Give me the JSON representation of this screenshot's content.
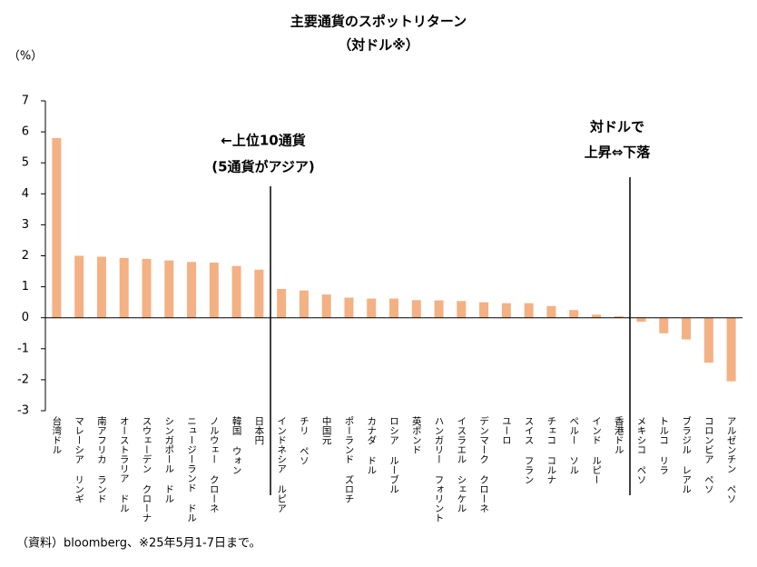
{
  "chart_data": {
    "type": "bar",
    "title": "主要通貨のスポットリターン",
    "subtitle": "（対ドル※）",
    "y_unit": "（%）",
    "annotations": [
      "←上位10通貨",
      "(5通貨がアジア)",
      "対ドルで",
      "上昇⇔下落"
    ],
    "footnote": "（資料）bloomberg、※25年5月1-7日まで。",
    "categories": [
      "台湾ドル",
      "マレーシア リンギ",
      "南アフリカ ランド",
      "オーストラリア ドル",
      "スウェーデン クローナ",
      "シンガポール ドル",
      "ニュージーランド ドル",
      "ノルウェー クローネ",
      "韓国 ウォン",
      "日本円",
      "インドネシア ルピア",
      "チリ ペソ",
      "中国元",
      "ポーランド ズロチ",
      "カナダ ドル",
      "ロシア ルーブル",
      "英ポンド",
      "ハンガリー フォリント",
      "イスラエル シェケル",
      "デンマーク クローネ",
      "ユーロ",
      "スイス フラン",
      "チェコ コルナ",
      "ペルー ソル",
      "インド ルピー",
      "香港ドル",
      "メキシコ ペソ",
      "トルコ リラ",
      "ブラジル レアル",
      "コロンビア ペソ",
      "アルゼンチン ペソ"
    ],
    "values": [
      5.8,
      2.0,
      1.97,
      1.93,
      1.9,
      1.85,
      1.8,
      1.78,
      1.67,
      1.55,
      0.93,
      0.88,
      0.75,
      0.65,
      0.62,
      0.62,
      0.57,
      0.56,
      0.54,
      0.5,
      0.47,
      0.47,
      0.38,
      0.25,
      0.1,
      0.05,
      -0.13,
      -0.5,
      -0.7,
      -1.45,
      -2.05
    ],
    "color": "#f4b183",
    "ylim": [
      -3,
      7
    ],
    "yticks": [
      -3,
      -2,
      -1,
      0,
      1,
      2,
      3,
      4,
      5,
      6,
      7
    ],
    "grid": false
  }
}
